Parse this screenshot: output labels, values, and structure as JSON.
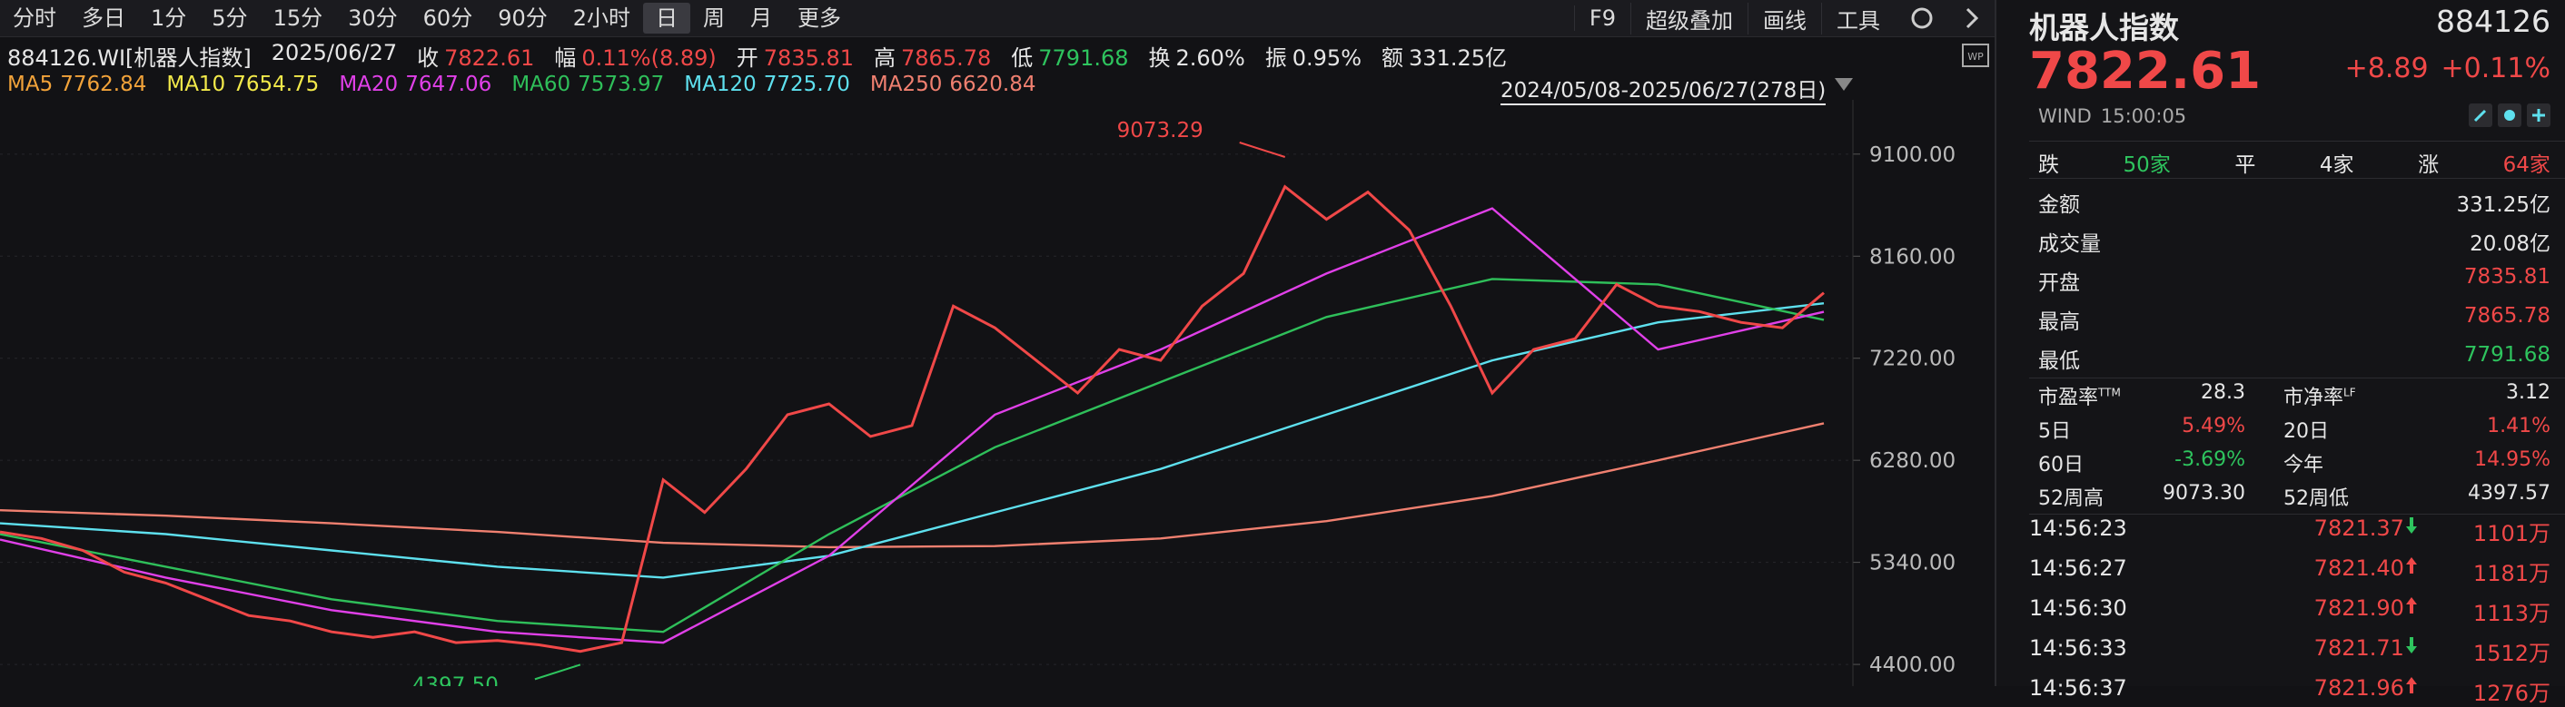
{
  "toolbar": {
    "tabs": [
      "分时",
      "多日",
      "1分",
      "5分",
      "15分",
      "30分",
      "60分",
      "90分",
      "2小时",
      "日",
      "周",
      "月",
      "更多"
    ],
    "active_tab": 9,
    "tools": [
      "F9",
      "超级叠加",
      "画线",
      "工具"
    ]
  },
  "info": {
    "code": "884126.WI[机器人指数]",
    "date": "2025/06/27",
    "fields": [
      {
        "label": "收",
        "value": "7822.61",
        "color": "#f04848"
      },
      {
        "label": "幅",
        "value": "0.11%(8.89)",
        "color": "#f04848"
      },
      {
        "label": "开",
        "value": "7835.81",
        "color": "#f04848"
      },
      {
        "label": "高",
        "value": "7865.78",
        "color": "#f04848"
      },
      {
        "label": "低",
        "value": "7791.68",
        "color": "#2ec45e"
      },
      {
        "label": "换",
        "value": "2.60%",
        "color": "#e6e6e6"
      },
      {
        "label": "振",
        "value": "0.95%",
        "color": "#e6e6e6"
      },
      {
        "label": "额",
        "value": "331.25亿",
        "color": "#e6e6e6"
      }
    ]
  },
  "ma_legend": [
    {
      "name": "MA5",
      "value": "7762.84",
      "color": "#f2a33a"
    },
    {
      "name": "MA10",
      "value": "7654.75",
      "color": "#f2e94a"
    },
    {
      "name": "MA20",
      "value": "7647.06",
      "color": "#e040e8"
    },
    {
      "name": "MA60",
      "value": "7573.97",
      "color": "#2fbf5a"
    },
    {
      "name": "MA120",
      "value": "7725.70",
      "color": "#5ee0ee"
    },
    {
      "name": "MA250",
      "value": "6620.84",
      "color": "#f08070"
    }
  ],
  "range": "2024/05/08-2025/06/27(278日)",
  "chart_data": {
    "type": "line",
    "ylim": [
      4200,
      9600
    ],
    "yticks": [
      {
        "value": 9100,
        "label": "9100.00"
      },
      {
        "value": 8160,
        "label": "8160.00"
      },
      {
        "value": 7220,
        "label": "7220.00"
      },
      {
        "value": 6280,
        "label": "6280.00"
      },
      {
        "value": 5340,
        "label": "5340.00"
      },
      {
        "value": 4400,
        "label": "4400.00"
      }
    ],
    "series": [
      {
        "name": "close",
        "color": "#f04848",
        "values": [
          5620,
          5560,
          5450,
          5250,
          5150,
          5000,
          4850,
          4800,
          4700,
          4650,
          4700,
          4600,
          4620,
          4580,
          4520,
          4600,
          6100,
          5800,
          6200,
          6700,
          6800,
          6500,
          6600,
          7700,
          7500,
          7200,
          6900,
          7300,
          7200,
          7700,
          8000,
          8800,
          8500,
          8750,
          8400,
          7700,
          6900,
          7300,
          7400,
          7900,
          7700,
          7650,
          7550,
          7500,
          7822.61
        ]
      },
      {
        "name": "MA20",
        "color": "#e040e8",
        "values": [
          5550,
          5200,
          4900,
          4700,
          4600,
          5400,
          6700,
          7300,
          8000,
          8600,
          7300,
          7647.06
        ]
      },
      {
        "name": "MA60",
        "color": "#2fbf5a",
        "values": [
          5600,
          5300,
          5000,
          4800,
          4700,
          5600,
          6400,
          7000,
          7600,
          7950,
          7900,
          7573.97
        ]
      },
      {
        "name": "MA120",
        "color": "#5ee0ee",
        "values": [
          5700,
          5600,
          5450,
          5300,
          5200,
          5400,
          5800,
          6200,
          6700,
          7200,
          7550,
          7725.7
        ]
      },
      {
        "name": "MA250",
        "color": "#f08070",
        "values": [
          5820,
          5770,
          5700,
          5620,
          5520,
          5480,
          5490,
          5560,
          5720,
          5950,
          6280,
          6620.84
        ]
      }
    ],
    "annotations": [
      {
        "value": 9073.29,
        "label": "9073.29",
        "color": "#f04848"
      },
      {
        "value": 4397.5,
        "label": "4397.50",
        "color": "#2ec45e"
      }
    ]
  },
  "quote": {
    "name": "机器人指数",
    "code": "884126",
    "price": "7822.61",
    "change": "+8.89",
    "change_pct": "+0.11%",
    "source": "WIND",
    "time": "15:00:05",
    "breadth": [
      {
        "label": "跌",
        "value": "50家",
        "color": "#2ec45e"
      },
      {
        "label": "平",
        "value": "4家",
        "color": "#e6e6e6"
      },
      {
        "label": "涨",
        "value": "64家",
        "color": "#f04848"
      }
    ],
    "kv": [
      {
        "label": "金额",
        "value": "331.25亿",
        "color": "#e6e6e6"
      },
      {
        "label": "成交量",
        "value": "20.08亿",
        "color": "#e6e6e6"
      },
      {
        "label": "开盘",
        "value": "7835.81",
        "color": "#f04848"
      },
      {
        "label": "最高",
        "value": "7865.78",
        "color": "#f04848"
      },
      {
        "label": "最低",
        "value": "7791.68",
        "color": "#2ec45e"
      }
    ],
    "stats": [
      [
        {
          "label": "市盈率",
          "sup": "TTM",
          "value": "28.3",
          "color": "#e6e6e6"
        },
        {
          "label": "市净率",
          "sup": "LF",
          "value": "3.12",
          "color": "#e6e6e6"
        }
      ],
      [
        {
          "label": "5日",
          "value": "5.49%",
          "color": "#f04848"
        },
        {
          "label": "20日",
          "value": "1.41%",
          "color": "#f04848"
        }
      ],
      [
        {
          "label": "60日",
          "value": "-3.69%",
          "color": "#2ec45e"
        },
        {
          "label": "今年",
          "value": "14.95%",
          "color": "#f04848"
        }
      ],
      [
        {
          "label": "52周高",
          "value": "9073.30",
          "color": "#e6e6e6"
        },
        {
          "label": "52周低",
          "value": "4397.57",
          "color": "#e6e6e6"
        }
      ]
    ],
    "ticks": [
      {
        "time": "14:56:23",
        "price": "7821.37",
        "up": false,
        "volume": "1101万"
      },
      {
        "time": "14:56:27",
        "price": "7821.40",
        "up": true,
        "volume": "1181万"
      },
      {
        "time": "14:56:30",
        "price": "7821.90",
        "up": true,
        "volume": "1113万"
      },
      {
        "time": "14:56:33",
        "price": "7821.71",
        "up": false,
        "volume": "1512万"
      },
      {
        "time": "14:56:37",
        "price": "7821.96",
        "up": true,
        "volume": "1276万"
      }
    ]
  }
}
